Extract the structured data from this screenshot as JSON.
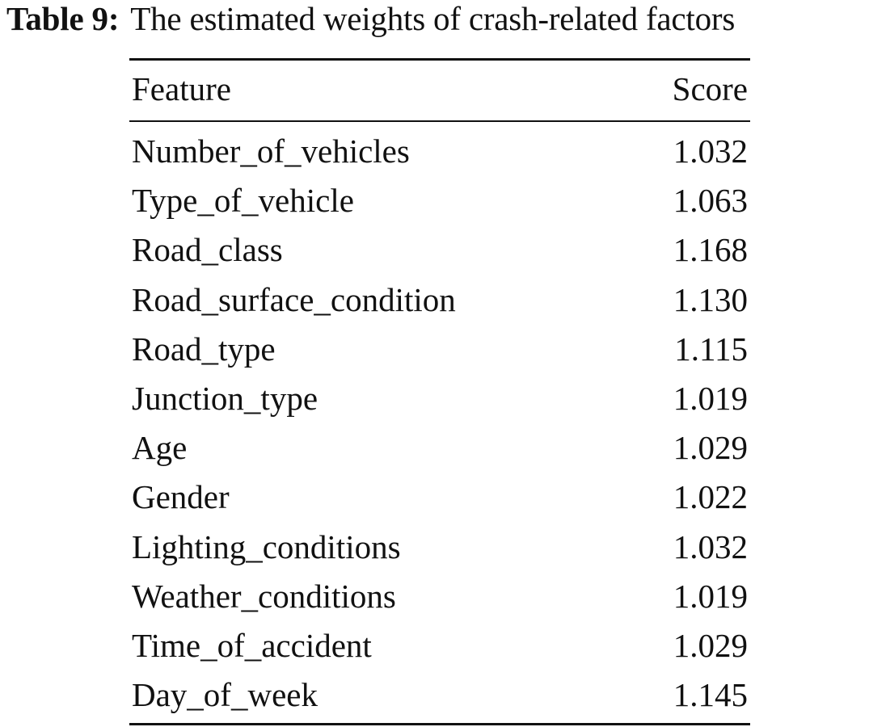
{
  "caption": {
    "label": "Table 9:",
    "text": "The estimated weights of crash-related factors"
  },
  "table": {
    "columns": [
      "Feature",
      "Score"
    ],
    "rows": [
      {
        "feature": "Number_of_vehicles",
        "score": "1.032"
      },
      {
        "feature": "Type_of_vehicle",
        "score": "1.063"
      },
      {
        "feature": "Road_class",
        "score": "1.168"
      },
      {
        "feature": "Road_surface_condition",
        "score": "1.130"
      },
      {
        "feature": "Road_type",
        "score": "1.115"
      },
      {
        "feature": "Junction_type",
        "score": "1.019"
      },
      {
        "feature": "Age",
        "score": "1.029"
      },
      {
        "feature": "Gender",
        "score": "1.022"
      },
      {
        "feature": "Lighting_conditions",
        "score": "1.032"
      },
      {
        "feature": "Weather_conditions",
        "score": "1.019"
      },
      {
        "feature": "Time_of_accident",
        "score": "1.029"
      },
      {
        "feature": "Day_of_week",
        "score": "1.145"
      }
    ]
  }
}
